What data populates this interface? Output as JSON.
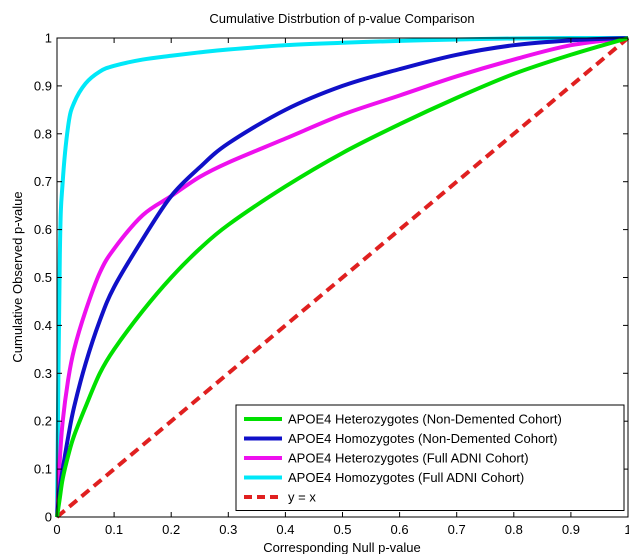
{
  "chart_data": {
    "type": "line",
    "title": "Cumulative Distrbution of p-value Comparison",
    "xlabel": "Corresponding Null p-value",
    "ylabel": "Cumulative Observed p-value",
    "xlim": [
      0,
      1
    ],
    "ylim": [
      0,
      1
    ],
    "xticks": [
      0,
      0.1,
      0.2,
      0.3,
      0.4,
      0.5,
      0.6,
      0.7,
      0.8,
      0.9,
      1
    ],
    "yticks": [
      0,
      0.1,
      0.2,
      0.3,
      0.4,
      0.5,
      0.6,
      0.7,
      0.8,
      0.9,
      1
    ],
    "xtick_labels": [
      "0",
      "0.1",
      "0.2",
      "0.3",
      "0.4",
      "0.5",
      "0.6",
      "0.7",
      "0.8",
      "0.9",
      "1"
    ],
    "ytick_labels": [
      "0",
      "0.1",
      "0.2",
      "0.3",
      "0.4",
      "0.5",
      "0.6",
      "0.7",
      "0.8",
      "0.9",
      "1"
    ],
    "grid": false,
    "legend_position": "bottom-right",
    "x": [
      0,
      0.005,
      0.01,
      0.02,
      0.03,
      0.05,
      0.075,
      0.1,
      0.15,
      0.2,
      0.25,
      0.3,
      0.4,
      0.5,
      0.6,
      0.7,
      0.8,
      0.9,
      1.0
    ],
    "series": [
      {
        "name": "APOE4 Heterozygotes (Non-Demented Cohort)",
        "color": "#00e000",
        "style": "solid",
        "values": [
          0,
          0.04,
          0.08,
          0.13,
          0.17,
          0.23,
          0.3,
          0.35,
          0.43,
          0.5,
          0.56,
          0.61,
          0.69,
          0.76,
          0.82,
          0.875,
          0.925,
          0.965,
          1.0
        ]
      },
      {
        "name": "APOE4 Homozygotes (Non-Demented Cohort)",
        "color": "#1010c8",
        "style": "solid",
        "values": [
          0,
          0.06,
          0.1,
          0.17,
          0.23,
          0.32,
          0.41,
          0.48,
          0.58,
          0.67,
          0.73,
          0.78,
          0.85,
          0.9,
          0.935,
          0.965,
          0.985,
          0.995,
          1.0
        ]
      },
      {
        "name": "APOE4 Heterozygotes (Full ADNI Cohort)",
        "color": "#ee10ee",
        "style": "solid",
        "values": [
          0,
          0.12,
          0.2,
          0.29,
          0.35,
          0.43,
          0.51,
          0.56,
          0.63,
          0.67,
          0.71,
          0.74,
          0.79,
          0.84,
          0.88,
          0.92,
          0.955,
          0.985,
          1.0
        ]
      },
      {
        "name": "APOE4 Homozygotes (Full ADNI Cohort)",
        "color": "#00e8f8",
        "style": "solid",
        "values": [
          0,
          0.55,
          0.7,
          0.82,
          0.865,
          0.905,
          0.93,
          0.942,
          0.955,
          0.963,
          0.97,
          0.976,
          0.985,
          0.99,
          0.994,
          0.997,
          0.999,
          1.0,
          1.0
        ]
      },
      {
        "name": "y = x",
        "color": "#e02020",
        "style": "dashed",
        "values": [
          0,
          0.005,
          0.01,
          0.02,
          0.03,
          0.05,
          0.075,
          0.1,
          0.15,
          0.2,
          0.25,
          0.3,
          0.4,
          0.5,
          0.6,
          0.7,
          0.8,
          0.9,
          1.0
        ]
      }
    ]
  }
}
